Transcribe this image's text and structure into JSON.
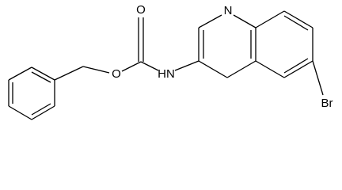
{
  "atoms": [
    {
      "label": "O"
    },
    {
      "label": "O"
    },
    {
      "label": "HN"
    },
    {
      "label": "N"
    },
    {
      "label": "Br"
    }
  ]
}
